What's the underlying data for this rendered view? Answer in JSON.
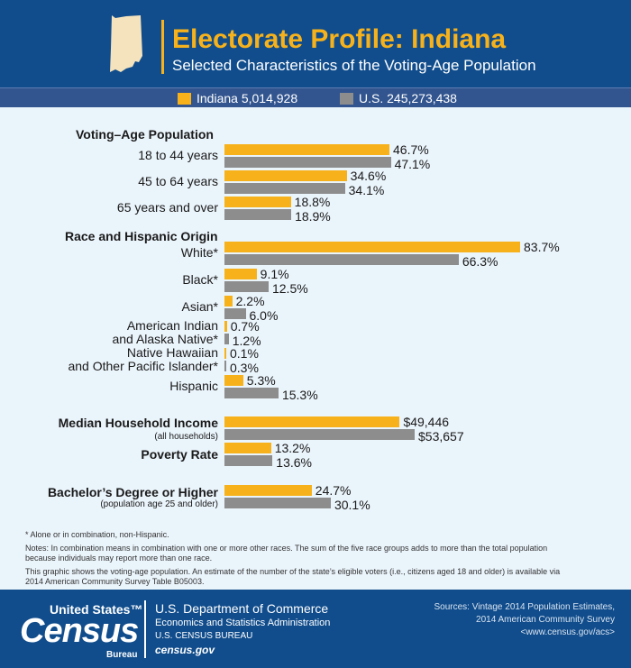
{
  "header": {
    "title": "Electorate Profile: Indiana",
    "subtitle": "Selected Characteristics of the Voting-Age Population"
  },
  "legend": [
    {
      "label": "Indiana 5,014,928",
      "color": "#f7b21b"
    },
    {
      "label": "U.S. 245,273,438",
      "color": "#8d8d8d"
    }
  ],
  "chart_data": {
    "type": "bar",
    "orientation": "horizontal",
    "series_labels": [
      "Indiana 5,014,928",
      "U.S. 245,273,438"
    ],
    "sections": [
      {
        "title": "Voting–Age Population",
        "rows": [
          {
            "label": "18 to 44 years",
            "indiana": 46.7,
            "us": 47.1,
            "indiana_text": "46.7%",
            "us_text": "47.1%"
          },
          {
            "label": "45 to 64 years",
            "indiana": 34.6,
            "us": 34.1,
            "indiana_text": "34.6%",
            "us_text": "34.1%"
          },
          {
            "label": "65 years and over",
            "indiana": 18.8,
            "us": 18.9,
            "indiana_text": "18.8%",
            "us_text": "18.9%"
          }
        ]
      },
      {
        "title": "Race and Hispanic Origin",
        "rows": [
          {
            "label": "White*",
            "indiana": 83.7,
            "us": 66.3,
            "indiana_text": "83.7%",
            "us_text": "66.3%"
          },
          {
            "label": "Black*",
            "indiana": 9.1,
            "us": 12.5,
            "indiana_text": "9.1%",
            "us_text": "12.5%"
          },
          {
            "label": "Asian*",
            "indiana": 2.2,
            "us": 6.0,
            "indiana_text": "2.2%",
            "us_text": "6.0%"
          },
          {
            "label": "American Indian and Alaska Native*",
            "indiana": 0.7,
            "us": 1.2,
            "indiana_text": "0.7%",
            "us_text": "1.2%"
          },
          {
            "label": "Native Hawaiian and Other Pacific Islander*",
            "indiana": 0.1,
            "us": 0.3,
            "indiana_text": "0.1%",
            "us_text": "0.3%"
          },
          {
            "label": "Hispanic",
            "indiana": 5.3,
            "us": 15.3,
            "indiana_text": "5.3%",
            "us_text": "15.3%"
          }
        ]
      },
      {
        "title": "Median Household Income",
        "subtitle": "(all households)",
        "rows": [
          {
            "label": "",
            "indiana": 49446,
            "us": 53657,
            "indiana_text": "$49,446",
            "us_text": "$53,657"
          }
        ]
      },
      {
        "title": "Poverty Rate",
        "rows": [
          {
            "label": "",
            "indiana": 13.2,
            "us": 13.6,
            "indiana_text": "13.2%",
            "us_text": "13.6%"
          }
        ]
      },
      {
        "title": "Bachelor’s Degree or Higher",
        "subtitle": "(population age 25 and older)",
        "rows": [
          {
            "label": "",
            "indiana": 24.7,
            "us": 30.1,
            "indiana_text": "24.7%",
            "us_text": "30.1%"
          }
        ]
      }
    ]
  },
  "notes": {
    "footnote": "* Alone or in combination, non-Hispanic.",
    "notes_line1": "Notes: In combination means in combination with one or more other races. The sum of the five race groups adds to more than the total population",
    "notes_line2": "because individuals may report more than one race.",
    "graphic_line1": "This graphic shows the voting-age population. An estimate of the number of the state’s eligible voters (i.e., citizens aged 18 and older) is available via",
    "graphic_line2": "2014 American Community Survey Table B05003."
  },
  "footer": {
    "logo_us": "United States™",
    "logo_census": "Census",
    "logo_bureau": "Bureau",
    "dept": "U.S. Department of Commerce",
    "esa": "Economics and Statistics Administration",
    "bureau": "U.S. CENSUS BUREAU",
    "site": "census.gov",
    "sources_1": "Sources: Vintage 2014 Population Estimates,",
    "sources_2": "2014 American Community Survey",
    "sources_3": "<www.census.gov/acs>"
  }
}
